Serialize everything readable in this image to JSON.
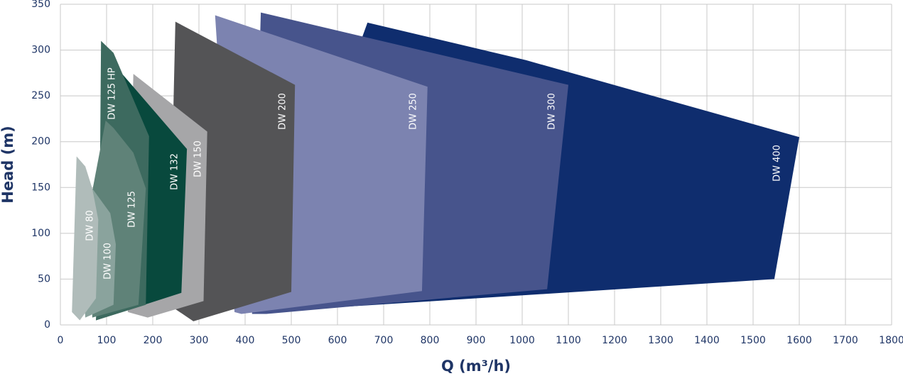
{
  "chart_data": {
    "type": "polygon",
    "x_label": "Q (m³/h)",
    "y_label": "Head (m)",
    "xlim": [
      0,
      1800
    ],
    "ylim": [
      0,
      350
    ],
    "xticks": [
      0,
      100,
      200,
      300,
      400,
      500,
      600,
      700,
      800,
      900,
      1000,
      1100,
      1200,
      1300,
      1400,
      1500,
      1600,
      1700,
      1800
    ],
    "yticks": [
      0,
      50,
      100,
      150,
      200,
      250,
      300,
      350
    ],
    "grid": true,
    "series": [
      {
        "name": "DW 400",
        "color": "#0f2d6e",
        "x": [
          665,
          1008,
          1600,
          1546,
          438
        ],
        "y": [
          330,
          289,
          205,
          50,
          14
        ]
      },
      {
        "name": "DW 300",
        "color": "#47548c",
        "x": [
          434,
          1100,
          1054,
          446,
          415
        ],
        "y": [
          341,
          262,
          39,
          12,
          12
        ]
      },
      {
        "name": "DW 250",
        "color": "#7c83b0",
        "x": [
          335,
          795,
          783,
          392,
          377
        ],
        "y": [
          338,
          260,
          37,
          12,
          14
        ]
      },
      {
        "name": "DW 200",
        "color": "#545456",
        "x": [
          249,
          508,
          500,
          288,
          235
        ],
        "y": [
          331,
          262,
          36,
          4,
          22
        ]
      },
      {
        "name": "DW 150",
        "color": "#a6a6a8",
        "x": [
          158,
          318,
          310,
          189,
          146
        ],
        "y": [
          274,
          211,
          26,
          8,
          14
        ]
      },
      {
        "name": "DW 132",
        "color": "#08493d",
        "x": [
          115,
          274,
          262,
          77,
          90
        ],
        "y": [
          285,
          192,
          35,
          5,
          60
        ]
      },
      {
        "name": "DW 125 HP",
        "color": "#3d6a5f",
        "x": [
          88,
          115,
          192,
          185,
          77,
          85
        ],
        "y": [
          310,
          297,
          206,
          22,
          5,
          122
        ]
      },
      {
        "name": "DW 125",
        "color": "#5f8278",
        "x": [
          98,
          115,
          158,
          185,
          169,
          69,
          69
        ],
        "y": [
          223,
          215,
          188,
          149,
          22,
          8,
          146
        ]
      },
      {
        "name": "DW 100",
        "color": "#8aa39d",
        "x": [
          69,
          108,
          120,
          115,
          54,
          46
        ],
        "y": [
          149,
          122,
          88,
          22,
          8,
          60
        ]
      },
      {
        "name": "DW 80",
        "color": "#b0bcba",
        "x": [
          35,
          54,
          69,
          82,
          77,
          42,
          25
        ],
        "y": [
          184,
          173,
          149,
          115,
          29,
          5,
          14
        ]
      }
    ]
  }
}
